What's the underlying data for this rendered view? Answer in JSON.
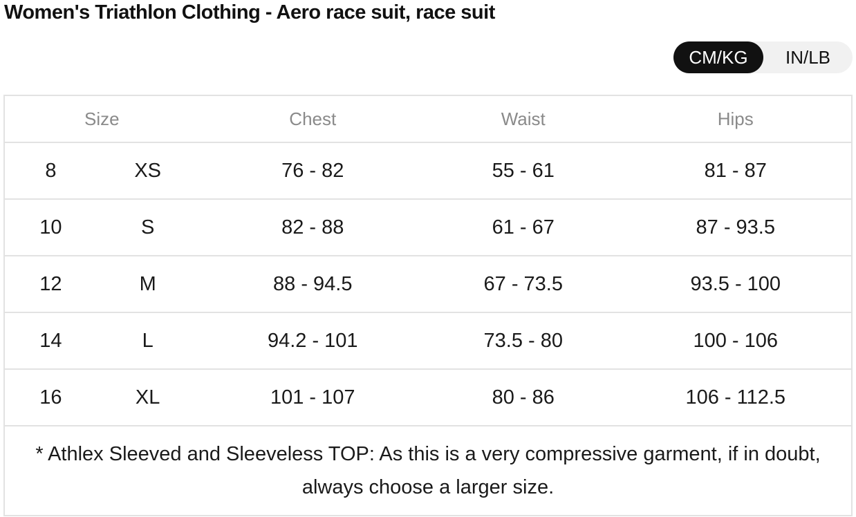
{
  "title": "Women's Triathlon Clothing - Aero race suit, race suit",
  "units": {
    "active": "CM/KG",
    "inactive": "IN/LB"
  },
  "table": {
    "headers": {
      "size": "Size",
      "chest": "Chest",
      "waist": "Waist",
      "hips": "Hips"
    },
    "rows": [
      {
        "num": "8",
        "letter": "XS",
        "chest": "76 - 82",
        "waist": "55 - 61",
        "hips": "81 - 87"
      },
      {
        "num": "10",
        "letter": "S",
        "chest": "82 - 88",
        "waist": "61 - 67",
        "hips": "87 - 93.5"
      },
      {
        "num": "12",
        "letter": "M",
        "chest": "88 - 94.5",
        "waist": "67 - 73.5",
        "hips": "93.5 - 100"
      },
      {
        "num": "14",
        "letter": "L",
        "chest": "94.2 - 101",
        "waist": "73.5 - 80",
        "hips": "100 - 106"
      },
      {
        "num": "16",
        "letter": "XL",
        "chest": "101 - 107",
        "waist": "80 - 86",
        "hips": "106 - 112.5"
      }
    ],
    "note": "* Athlex Sleeved and Sleeveless TOP: As this is a very compressive garment, if in doubt, always choose a larger size."
  }
}
